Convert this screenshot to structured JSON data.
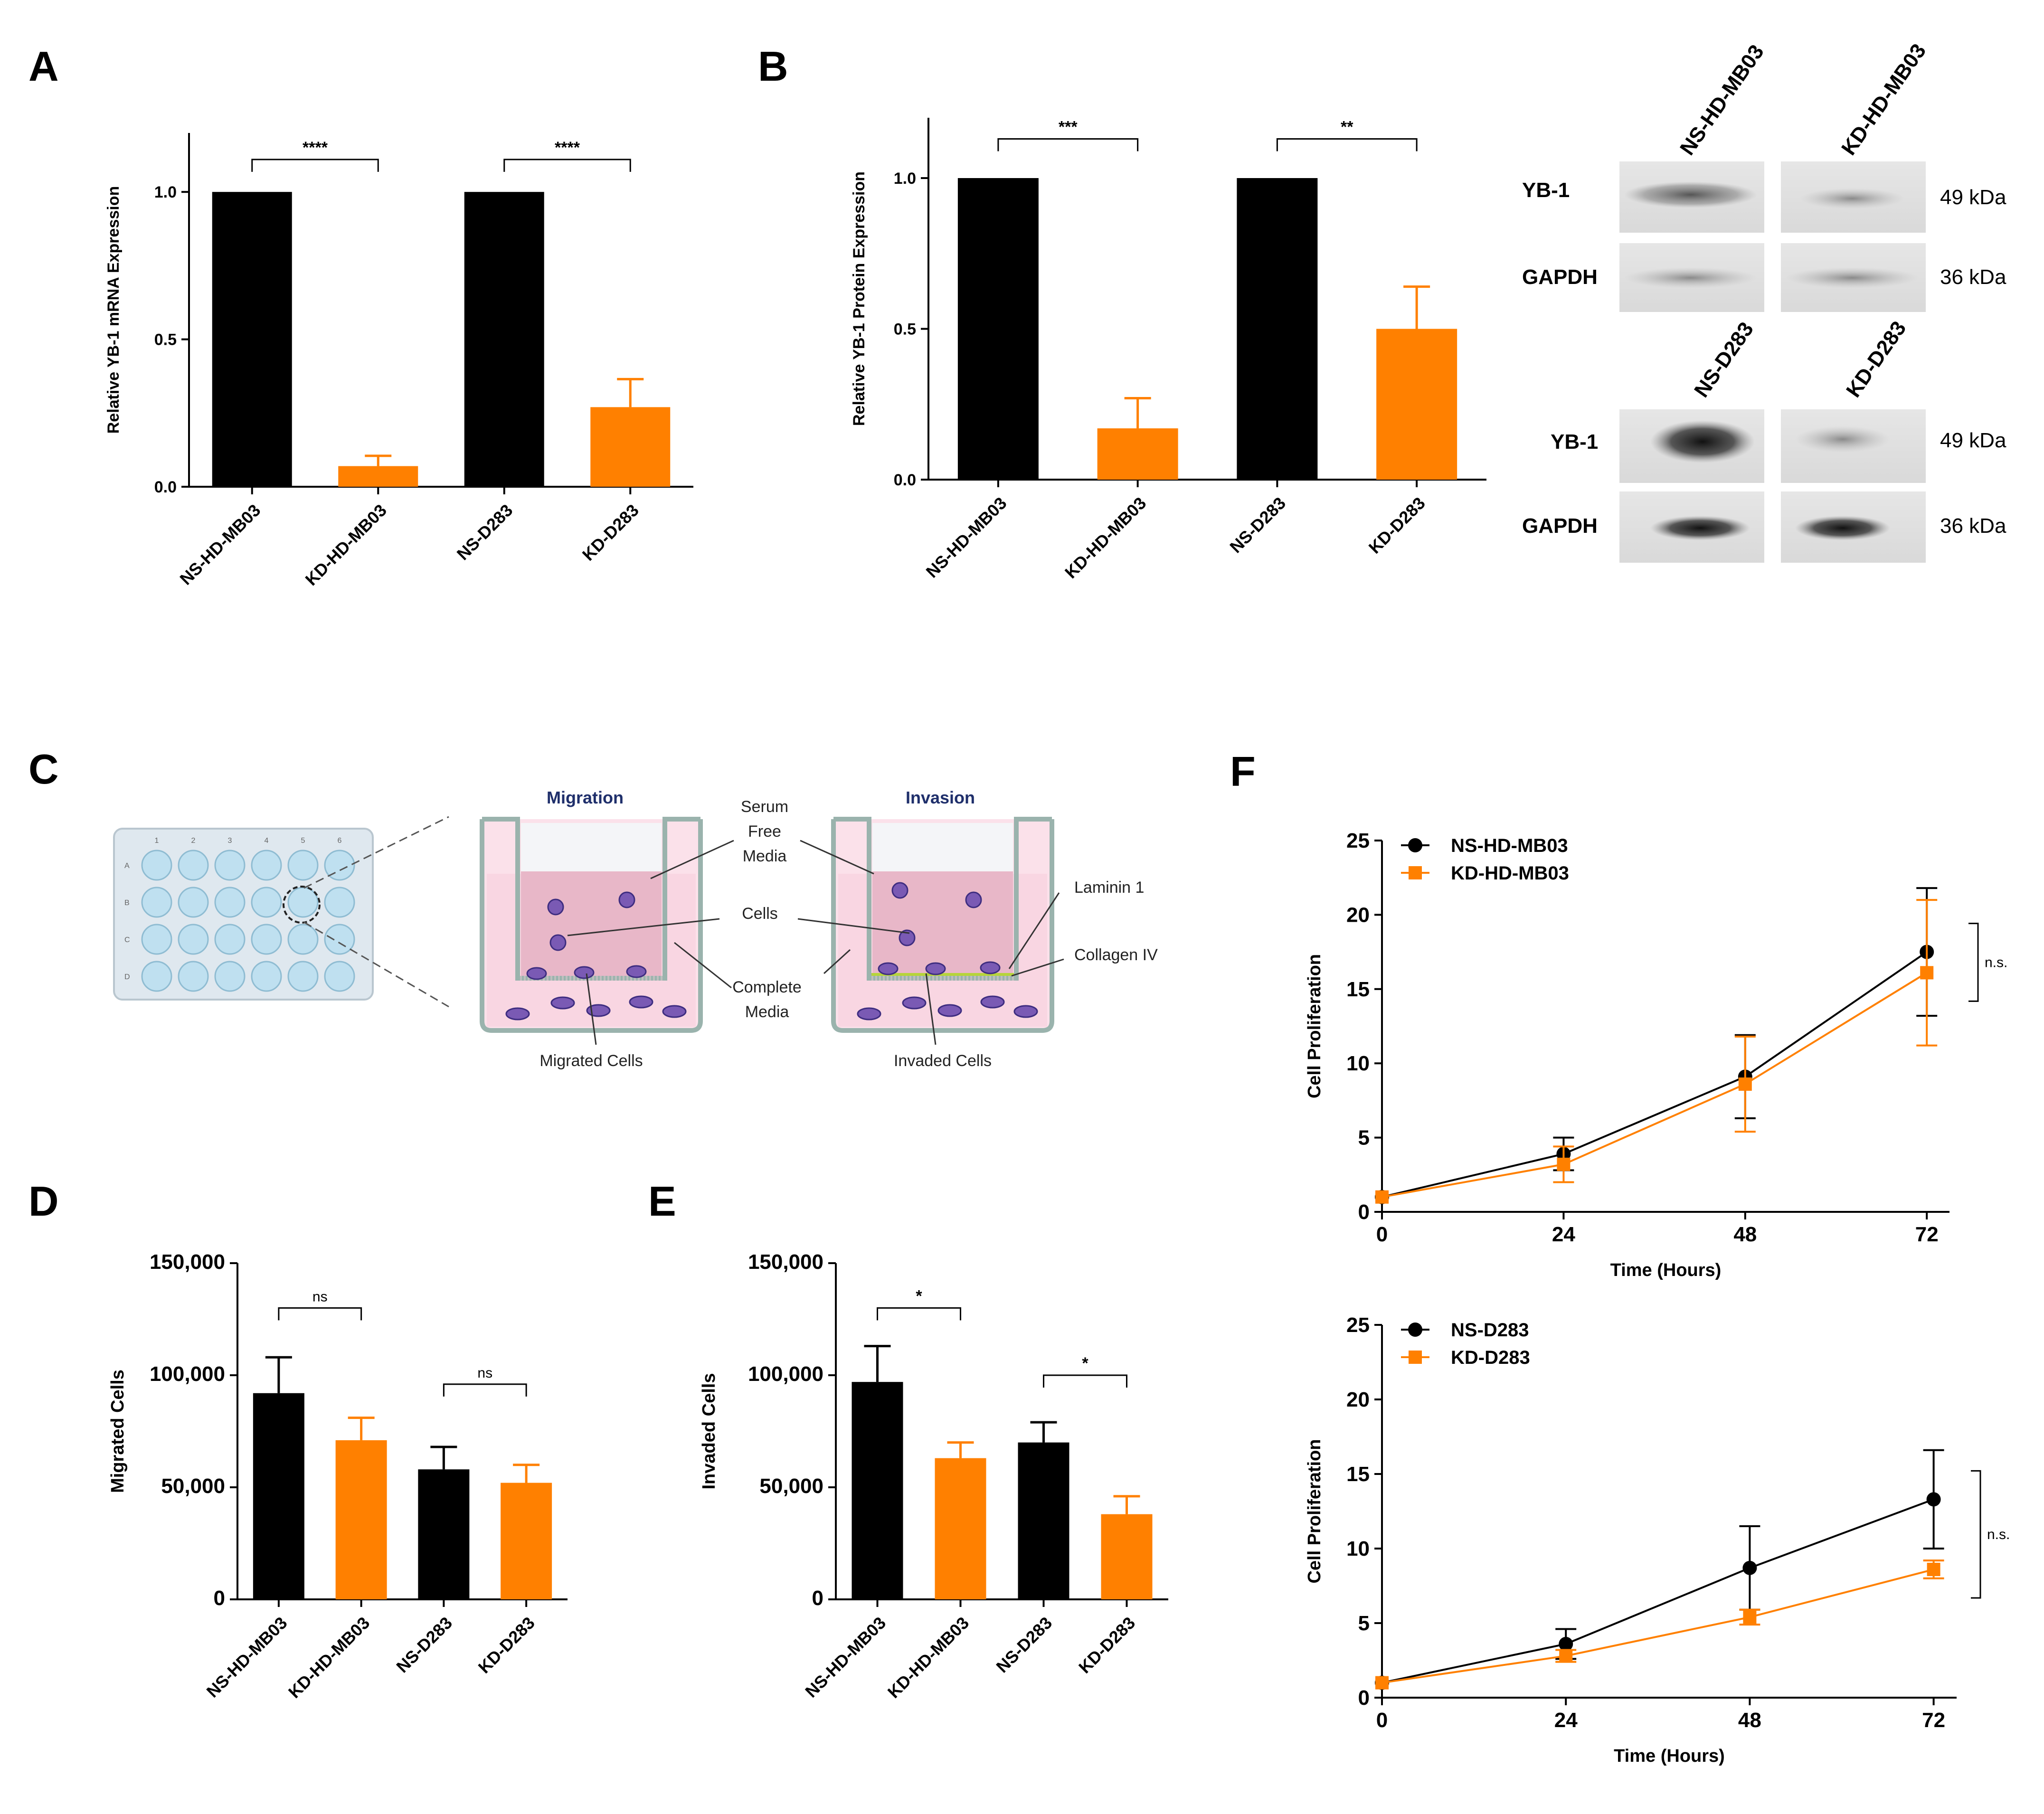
{
  "panels": {
    "A": "A",
    "B": "B",
    "C": "C",
    "D": "D",
    "E": "E",
    "F": "F"
  },
  "colors": {
    "ns": "#000000",
    "kd": "#ff8000",
    "axis": "#000000"
  },
  "chart_data": [
    {
      "id": "A",
      "type": "bar",
      "title": "",
      "ylabel": "Relative YB-1 mRNA Expression",
      "xlabel": "",
      "categories": [
        "NS-HD-MB03",
        "KD-HD-MB03",
        "NS-D283",
        "KD-D283"
      ],
      "values": [
        1.0,
        0.07,
        1.0,
        0.27
      ],
      "errors": [
        0,
        0.035,
        0,
        0.095
      ],
      "bar_colors": [
        "#000000",
        "#ff8000",
        "#000000",
        "#ff8000"
      ],
      "ylim": [
        0,
        1.2
      ],
      "yticks": [
        0.0,
        0.5,
        1.0
      ],
      "ytick_labels": [
        "0.0",
        "0.5",
        "1.0"
      ],
      "significance": [
        {
          "from": 0,
          "to": 1,
          "label": "****",
          "y": 1.11
        },
        {
          "from": 2,
          "to": 3,
          "label": "****",
          "y": 1.11
        }
      ]
    },
    {
      "id": "B",
      "type": "bar",
      "title": "",
      "ylabel": "Relative YB-1 Protein Expression",
      "xlabel": "",
      "categories": [
        "NS-HD-MB03",
        "KD-HD-MB03",
        "NS-D283",
        "KD-D283"
      ],
      "values": [
        1.0,
        0.17,
        1.0,
        0.5
      ],
      "errors": [
        0,
        0.1,
        0,
        0.14
      ],
      "bar_colors": [
        "#000000",
        "#ff8000",
        "#000000",
        "#ff8000"
      ],
      "ylim": [
        0,
        1.2
      ],
      "yticks": [
        0.0,
        0.5,
        1.0
      ],
      "ytick_labels": [
        "0.0",
        "0.5",
        "1.0"
      ],
      "significance": [
        {
          "from": 0,
          "to": 1,
          "label": "***",
          "y": 1.13
        },
        {
          "from": 2,
          "to": 3,
          "label": "**",
          "y": 1.13
        }
      ]
    },
    {
      "id": "D",
      "type": "bar",
      "title": "",
      "ylabel": "Migrated Cells",
      "xlabel": "",
      "categories": [
        "NS-HD-MB03",
        "KD-HD-MB03",
        "NS-D283",
        "KD-D283"
      ],
      "values": [
        92000,
        71000,
        58000,
        52000
      ],
      "errors": [
        16000,
        10000,
        10000,
        8000
      ],
      "bar_colors": [
        "#000000",
        "#ff8000",
        "#000000",
        "#ff8000"
      ],
      "ylim": [
        0,
        150000
      ],
      "yticks": [
        0,
        50000,
        100000,
        150000
      ],
      "ytick_labels": [
        "0",
        "50,000",
        "100,000",
        "150,000"
      ],
      "significance": [
        {
          "from": 0,
          "to": 1,
          "label": "ns",
          "y": 130000
        },
        {
          "from": 2,
          "to": 3,
          "label": "ns",
          "y": 96000
        }
      ]
    },
    {
      "id": "E",
      "type": "bar",
      "title": "",
      "ylabel": "Invaded Cells",
      "xlabel": "",
      "categories": [
        "NS-HD-MB03",
        "KD-HD-MB03",
        "NS-D283",
        "KD-D283"
      ],
      "values": [
        97000,
        63000,
        70000,
        38000
      ],
      "errors": [
        16000,
        7000,
        9000,
        8000
      ],
      "bar_colors": [
        "#000000",
        "#ff8000",
        "#000000",
        "#ff8000"
      ],
      "ylim": [
        0,
        150000
      ],
      "yticks": [
        0,
        50000,
        100000,
        150000
      ],
      "ytick_labels": [
        "0",
        "50,000",
        "100,000",
        "150,000"
      ],
      "significance": [
        {
          "from": 0,
          "to": 1,
          "label": "*",
          "y": 130000
        },
        {
          "from": 2,
          "to": 3,
          "label": "*",
          "y": 100000
        }
      ]
    },
    {
      "id": "F-top",
      "type": "line",
      "title": "",
      "ylabel": "Cell Proliferation",
      "xlabel": "Time (Hours)",
      "x": [
        0,
        24,
        48,
        72
      ],
      "xticks": [
        0,
        24,
        48,
        72
      ],
      "xlim": [
        0,
        75
      ],
      "ylim": [
        0,
        25
      ],
      "yticks": [
        0,
        5,
        10,
        15,
        20,
        25
      ],
      "series": [
        {
          "name": "NS-HD-MB03",
          "values": [
            1.0,
            3.9,
            9.1,
            17.5
          ],
          "errors": [
            0,
            1.1,
            2.8,
            4.3
          ],
          "color": "#000000",
          "marker": "circle"
        },
        {
          "name": "KD-HD-MB03",
          "values": [
            1.0,
            3.2,
            8.6,
            16.1
          ],
          "errors": [
            0,
            1.2,
            3.2,
            4.9
          ],
          "color": "#ff8000",
          "marker": "square"
        }
      ],
      "annotation": "n.s."
    },
    {
      "id": "F-bottom",
      "type": "line",
      "title": "",
      "ylabel": "Cell Proliferation",
      "xlabel": "Time (Hours)",
      "x": [
        0,
        24,
        48,
        72
      ],
      "xticks": [
        0,
        24,
        48,
        72
      ],
      "xlim": [
        0,
        75
      ],
      "ylim": [
        0,
        25
      ],
      "yticks": [
        0,
        5,
        10,
        15,
        20,
        25
      ],
      "series": [
        {
          "name": "NS-D283",
          "values": [
            1.0,
            3.6,
            8.7,
            13.3
          ],
          "errors": [
            0,
            1.0,
            2.8,
            3.3
          ],
          "color": "#000000",
          "marker": "circle"
        },
        {
          "name": "KD-D283",
          "values": [
            1.0,
            2.8,
            5.4,
            8.6
          ],
          "errors": [
            0,
            0.4,
            0.5,
            0.6
          ],
          "color": "#ff8000",
          "marker": "square"
        }
      ],
      "annotation": "n.s."
    }
  ],
  "western_blot": {
    "columns_top": [
      "NS-HD-MB03",
      "KD-HD-MB03"
    ],
    "columns_bottom": [
      "NS-D283",
      "KD-D283"
    ],
    "rows": [
      {
        "protein": "YB-1",
        "size": "49 kDa"
      },
      {
        "protein": "GAPDH",
        "size": "36 kDa"
      }
    ]
  },
  "diagram": {
    "migration_title": "Migration",
    "invasion_title": "Invasion",
    "labels": {
      "serum_free_1": "Serum",
      "serum_free_2": "Free",
      "serum_free_3": "Media",
      "cells": "Cells",
      "complete_1": "Complete",
      "complete_2": "Media",
      "migrated_cells": "Migrated Cells",
      "invaded_cells": "Invaded Cells",
      "laminin": "Laminin 1",
      "collagen": "Collagen IV"
    },
    "plate_rows": [
      "A",
      "B",
      "C",
      "D"
    ],
    "plate_cols": [
      "1",
      "2",
      "3",
      "4",
      "5",
      "6"
    ]
  }
}
